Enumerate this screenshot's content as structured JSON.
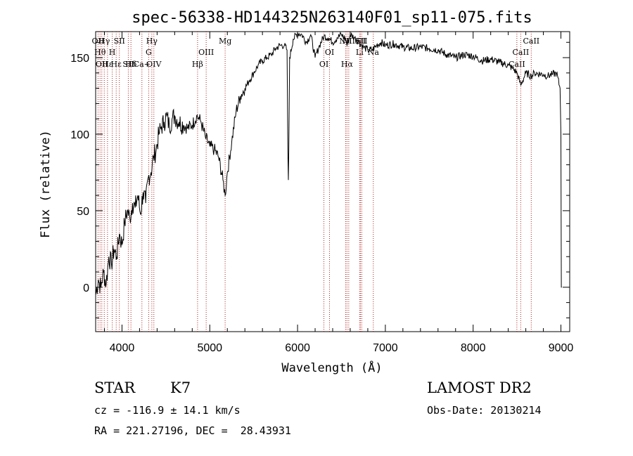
{
  "chart_data": {
    "type": "line",
    "title": "spec-56338-HD144325N263140F01_sp11-075.fits",
    "xlabel": "Wavelength (Å)",
    "ylabel": "Flux (relative)",
    "xlim": [
      3700,
      9100
    ],
    "ylim": [
      -29,
      167
    ],
    "x_ticks": [
      4000,
      5000,
      6000,
      7000,
      8000,
      9000
    ],
    "y_ticks": [
      0,
      50,
      100,
      150
    ],
    "series": [
      {
        "x": [
          3700,
          3730,
          3760,
          3790,
          3820,
          3850,
          3880,
          3910,
          3940,
          3970,
          4000,
          4030,
          4060,
          4090,
          4120,
          4150,
          4180,
          4210,
          4240,
          4270,
          4300,
          4330,
          4360,
          4390,
          4420,
          4450,
          4480,
          4510,
          4540,
          4570,
          4600,
          4650,
          4700,
          4750,
          4800,
          4850,
          4880,
          4900,
          4950,
          5000,
          5050,
          5100,
          5150,
          5175,
          5200,
          5250,
          5300,
          5350,
          5400,
          5450,
          5500,
          5550,
          5600,
          5650,
          5700,
          5750,
          5800,
          5850,
          5880,
          5890,
          5895,
          5900,
          5910,
          5950,
          6000,
          6050,
          6100,
          6150,
          6200,
          6250,
          6300,
          6350,
          6400,
          6450,
          6500,
          6550,
          6563,
          6600,
          6650,
          6700,
          6750,
          6800,
          6850,
          6900,
          6950,
          7000,
          7100,
          7200,
          7300,
          7400,
          7500,
          7600,
          7700,
          7800,
          7900,
          8000,
          8100,
          8200,
          8300,
          8400,
          8450,
          8500,
          8542,
          8600,
          8662,
          8700,
          8800,
          8850,
          8900,
          8950,
          8990,
          9000,
          9005,
          9010
        ],
        "y": [
          -5,
          5,
          0,
          10,
          2,
          20,
          15,
          25,
          20,
          35,
          28,
          42,
          50,
          45,
          55,
          52,
          60,
          48,
          62,
          55,
          72,
          75,
          85,
          90,
          100,
          105,
          108,
          112,
          105,
          110,
          112,
          108,
          106,
          104,
          106,
          112,
          110,
          108,
          98,
          92,
          90,
          85,
          70,
          60,
          75,
          95,
          115,
          125,
          130,
          135,
          140,
          145,
          148,
          150,
          152,
          156,
          158,
          158,
          155,
          88,
          70,
          90,
          150,
          162,
          166,
          165,
          160,
          165,
          150,
          158,
          164,
          163,
          160,
          163,
          165,
          162,
          158,
          165,
          163,
          160,
          157,
          155,
          155,
          158,
          160,
          158,
          159,
          157,
          156,
          157,
          156,
          155,
          152,
          150,
          152,
          151,
          148,
          149,
          147,
          145,
          143,
          140,
          132,
          140,
          138,
          140,
          139,
          138,
          139,
          140,
          130,
          100,
          0,
          0
        ]
      }
    ],
    "line_markers": [
      {
        "wave": 3727,
        "label": "OII",
        "row": 1
      },
      {
        "wave": 3750,
        "label": "Hθ",
        "row": 2
      },
      {
        "wave": 3770,
        "label": "OII",
        "row": 3
      },
      {
        "wave": 3798,
        "label": "Hγ",
        "row": 1
      },
      {
        "wave": 3835,
        "label": "Hε",
        "row": 3
      },
      {
        "wave": 3889,
        "label": "H",
        "row": 2
      },
      {
        "wave": 3934,
        "label": "Hε",
        "row": 3
      },
      {
        "wave": 3970,
        "label": "SII",
        "row": 1
      },
      {
        "wave": 4072,
        "label": "SII",
        "row": 3
      },
      {
        "wave": 4102,
        "label": "Hδ",
        "row": 3
      },
      {
        "wave": 4227,
        "label": "Ca+",
        "row": 3
      },
      {
        "wave": 4304,
        "label": "G",
        "row": 2
      },
      {
        "wave": 4340,
        "label": "Hγ",
        "row": 1
      },
      {
        "wave": 4363,
        "label": "OIV",
        "row": 3
      },
      {
        "wave": 4861,
        "label": "Hβ",
        "row": 3
      },
      {
        "wave": 4959,
        "label": "OIII",
        "row": 2
      },
      {
        "wave": 5175,
        "label": "Mg",
        "row": 1
      },
      {
        "wave": 6300,
        "label": "OI",
        "row": 3
      },
      {
        "wave": 6364,
        "label": "OI",
        "row": 2
      },
      {
        "wave": 6548,
        "label": "NII",
        "row": 1
      },
      {
        "wave": 6563,
        "label": "Hα",
        "row": 3
      },
      {
        "wave": 6583,
        "label": "NII",
        "row": 1
      },
      {
        "wave": 6707,
        "label": "Li",
        "row": 2
      },
      {
        "wave": 6716,
        "label": "SII",
        "row": 1
      },
      {
        "wave": 6731,
        "label": "SII",
        "row": 1
      },
      {
        "wave": 6863,
        "label": "Na",
        "row": 2
      },
      {
        "wave": 8498,
        "label": "CaII",
        "row": 3
      },
      {
        "wave": 8542,
        "label": "CaII",
        "row": 2
      },
      {
        "wave": 8662,
        "label": "CaII",
        "row": 1
      }
    ]
  },
  "info": {
    "object_class": "STAR",
    "subclass": "K7",
    "survey": "LAMOST DR2",
    "cz_line": "cz = -116.9 ± 14.1 km/s",
    "obs_date": "Obs-Date: 20130214",
    "radec_line": "RA = 221.27196, DEC =  28.43931"
  }
}
